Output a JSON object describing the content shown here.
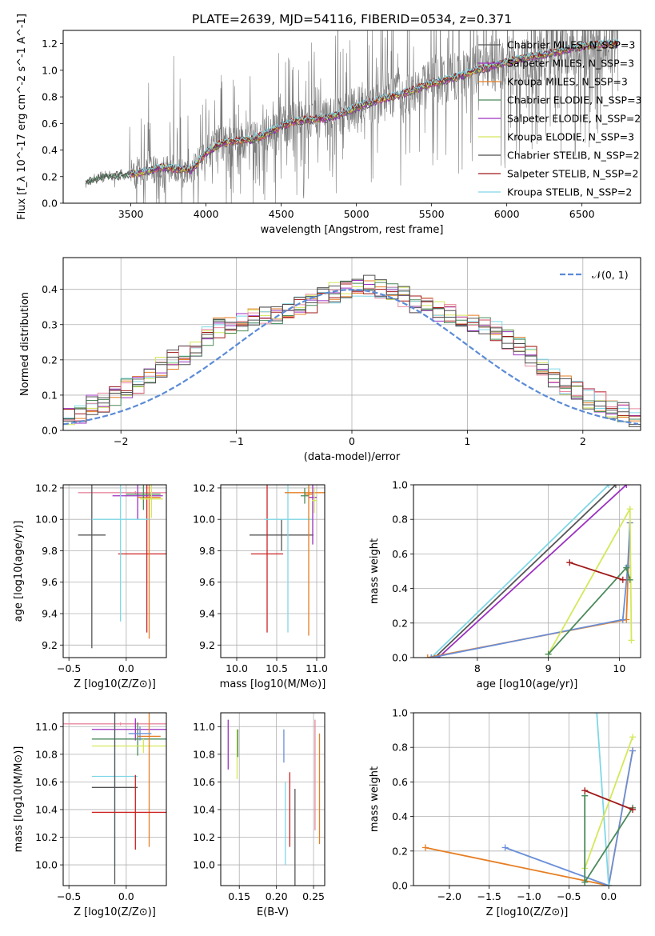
{
  "palette": [
    "#555555",
    "#9b30c0",
    "#e67e22",
    "#4a8a5a",
    "#d4e85a",
    "#4e4e4e",
    "#a01818",
    "#7fd7e6",
    "#e88aa0",
    "#6a8fd8"
  ],
  "chart_data": [
    {
      "type": "line",
      "title": "PLATE=2639, MJD=54116, FIBERID=0534, z=0.371",
      "xlabel": "wavelength [Angstrom, rest frame]",
      "ylabel": "Flux [f_λ 10^-17 erg cm^-2 s^-1 A^-1]",
      "xlim": [
        3050,
        6890
      ],
      "ylim": [
        0,
        1.3
      ],
      "xticks": [
        "3500",
        "4000",
        "4500",
        "5000",
        "5500",
        "6000",
        "6500"
      ],
      "yticks": [
        "0.0",
        "0.2",
        "0.4",
        "0.6",
        "0.8",
        "1.0",
        "1.2"
      ],
      "grid": false,
      "legend_position": "top-right",
      "data_range": [
        3200,
        6740
      ],
      "series": [
        {
          "name": "Chabrier MILES, N_SSP=3",
          "color": "#555555"
        },
        {
          "name": "Salpeter MILES, N_SSP=3",
          "color": "#9b30c0"
        },
        {
          "name": "Kroupa MILES, N_SSP=3",
          "color": "#e67e22"
        },
        {
          "name": "Chabrier ELODIE, N_SSP=3",
          "color": "#4a8a5a"
        },
        {
          "name": "Salpeter ELODIE, N_SSP=2",
          "color": "#9b30c0"
        },
        {
          "name": "Kroupa ELODIE, N_SSP=3",
          "color": "#d4e85a"
        },
        {
          "name": "Chabrier STELIB, N_SSP=2",
          "color": "#4e4e4e"
        },
        {
          "name": "Salpeter STELIB, N_SSP=2",
          "color": "#a01818"
        },
        {
          "name": "Kroupa STELIB, N_SSP=2",
          "color": "#7fd7e6"
        }
      ],
      "continuum_points": [
        [
          3200,
          0.16
        ],
        [
          3300,
          0.2
        ],
        [
          3400,
          0.21
        ],
        [
          3500,
          0.22
        ],
        [
          3600,
          0.24
        ],
        [
          3700,
          0.27
        ],
        [
          3800,
          0.26
        ],
        [
          3900,
          0.25
        ],
        [
          4000,
          0.38
        ],
        [
          4100,
          0.45
        ],
        [
          4200,
          0.47
        ],
        [
          4300,
          0.48
        ],
        [
          4400,
          0.52
        ],
        [
          4500,
          0.58
        ],
        [
          4600,
          0.62
        ],
        [
          4700,
          0.63
        ],
        [
          4800,
          0.64
        ],
        [
          4900,
          0.67
        ],
        [
          5000,
          0.72
        ],
        [
          5100,
          0.76
        ],
        [
          5200,
          0.79
        ],
        [
          5300,
          0.82
        ],
        [
          5400,
          0.86
        ],
        [
          5500,
          0.9
        ],
        [
          5600,
          0.93
        ],
        [
          5700,
          0.96
        ],
        [
          5800,
          1.0
        ],
        [
          5900,
          1.03
        ],
        [
          6000,
          1.06
        ],
        [
          6100,
          1.09
        ],
        [
          6200,
          1.11
        ],
        [
          6300,
          1.13
        ],
        [
          6400,
          1.16
        ],
        [
          6500,
          1.18
        ],
        [
          6600,
          1.19
        ],
        [
          6740,
          1.2
        ]
      ]
    },
    {
      "type": "step",
      "xlabel": "(data-model)/error",
      "ylabel": "Normed distribution",
      "xlim": [
        -2.5,
        2.5
      ],
      "ylim": [
        0,
        0.49
      ],
      "xticks": [
        "−2",
        "−1",
        "0",
        "1",
        "2"
      ],
      "yticks": [
        "0.0",
        "0.1",
        "0.2",
        "0.3",
        "0.4"
      ],
      "grid": true,
      "legend_position": "top-right",
      "legend": "𝒩(0, 1)",
      "gaussian": {
        "mean": 0,
        "sigma": 1,
        "color": "#5b8bd6"
      },
      "bin_width": 0.1,
      "base_histogram": [
        0.02,
        0.03,
        0.04,
        0.05,
        0.04,
        0.04,
        0.05,
        0.07,
        0.08,
        0.1,
        0.12,
        0.13,
        0.15,
        0.18,
        0.2,
        0.21,
        0.23,
        0.27,
        0.29,
        0.3,
        0.31,
        0.32,
        0.33,
        0.33,
        0.34,
        0.35,
        0.36,
        0.38,
        0.39,
        0.4,
        0.4,
        0.41,
        0.4,
        0.39,
        0.38,
        0.36,
        0.35,
        0.34,
        0.33,
        0.32,
        0.31,
        0.3,
        0.28,
        0.26,
        0.24,
        0.21,
        0.18,
        0.15,
        0.13,
        0.11,
        0.09,
        0.08,
        0.06,
        0.05,
        0.04,
        0.04,
        0.03,
        0.03,
        0.03,
        0.02
      ]
    },
    {
      "type": "errorbar",
      "xlabel": "Z [log10(Z/Z⊙)]",
      "ylabel": "age [log10(age/yr)]",
      "xlim": [
        -0.55,
        0.35
      ],
      "ylim": [
        9.12,
        10.22
      ],
      "xticks": [
        "−0.5",
        "0.0"
      ],
      "yticks": [
        "9.2",
        "9.4",
        "9.6",
        "9.8",
        "10.0",
        "10.2"
      ],
      "grid": true,
      "points": [
        {
          "x": 0.08,
          "y": 10.17,
          "xerr": 0.5,
          "yerr": 0.01,
          "color": "#e88aa0"
        },
        {
          "x": -0.3,
          "y": 9.9,
          "xerr": 0.12,
          "yerr": 0.72,
          "color": "#555555"
        },
        {
          "x": 0.18,
          "y": 9.78,
          "xerr": 0.25,
          "yerr": 0.5,
          "color": "#cc2222"
        },
        {
          "x": 0.1,
          "y": 10.15,
          "xerr": 0.22,
          "yerr": 0.15,
          "color": "#9b30c0"
        },
        {
          "x": 0.2,
          "y": 10.14,
          "xerr": 0.1,
          "yerr": 0.9,
          "color": "#e67e22"
        },
        {
          "x": -0.05,
          "y": 10.0,
          "xerr": 0.25,
          "yerr": 0.65,
          "color": "#7fd7e6"
        },
        {
          "x": 0.15,
          "y": 10.16,
          "xerr": 0.15,
          "yerr": 0.1,
          "color": "#4a8a5a"
        },
        {
          "x": 0.22,
          "y": 10.13,
          "xerr": 0.1,
          "yerr": 0.12,
          "color": "#d4e85a"
        }
      ]
    },
    {
      "type": "errorbar",
      "xlabel": "mass [log10(M/M⊙)]",
      "ylabel": "",
      "xlim": [
        9.8,
        11.1
      ],
      "ylim": [
        9.12,
        10.22
      ],
      "xticks": [
        "10.0",
        "10.5",
        "11.0"
      ],
      "yticks": [
        "9.2",
        "9.4",
        "9.6",
        "9.8",
        "10.0",
        "10.2"
      ],
      "grid": true,
      "points": [
        {
          "x": 10.56,
          "y": 9.9,
          "xerr": 0.4,
          "yerr": 0.1,
          "color": "#555555"
        },
        {
          "x": 10.38,
          "y": 9.78,
          "xerr": 0.2,
          "yerr": 0.5,
          "color": "#cc2222"
        },
        {
          "x": 10.64,
          "y": 10.0,
          "xerr": 0.3,
          "yerr": 0.72,
          "color": "#7fd7e6"
        },
        {
          "x": 10.9,
          "y": 10.17,
          "xerr": 0.3,
          "yerr": 0.02,
          "color": "#e67e22"
        },
        {
          "x": 10.95,
          "y": 10.14,
          "xerr": 0.05,
          "yerr": 0.3,
          "color": "#9b30c0"
        },
        {
          "x": 10.9,
          "y": 10.16,
          "xerr": 0.05,
          "yerr": 0.9,
          "color": "#e67e22"
        },
        {
          "x": 10.85,
          "y": 10.15,
          "xerr": 0.05,
          "yerr": 0.05,
          "color": "#4a8a5a"
        },
        {
          "x": 10.97,
          "y": 10.12,
          "xerr": 0.03,
          "yerr": 0.08,
          "color": "#d4e85a"
        }
      ]
    },
    {
      "type": "line",
      "xlabel": "age [log10(age/yr)]",
      "ylabel": "mass weight",
      "xlim": [
        7.1,
        10.3
      ],
      "ylim": [
        0,
        1
      ],
      "xticks": [
        "8",
        "9",
        "10"
      ],
      "yticks": [
        "0.0",
        "0.2",
        "0.4",
        "0.6",
        "0.8",
        "1.0"
      ],
      "grid": true,
      "series": [
        {
          "color": "#555555",
          "points": [
            [
              7.4,
              0.0
            ],
            [
              9.95,
              1.0
            ]
          ]
        },
        {
          "color": "#9b30c0",
          "points": [
            [
              7.45,
              0.0
            ],
            [
              10.1,
              1.0
            ]
          ]
        },
        {
          "color": "#7fd7e6",
          "points": [
            [
              7.35,
              0.0
            ],
            [
              9.85,
              1.0
            ]
          ]
        },
        {
          "color": "#e67e22",
          "points": [
            [
              7.3,
              0.0
            ],
            [
              10.1,
              0.22
            ],
            [
              10.15,
              0.78
            ]
          ]
        },
        {
          "color": "#6a8fd8",
          "points": [
            [
              7.35,
              0.0
            ],
            [
              10.05,
              0.22
            ],
            [
              10.12,
              0.53
            ],
            [
              10.15,
              0.78
            ]
          ]
        },
        {
          "color": "#d4e85a",
          "points": [
            [
              9.0,
              0.02
            ],
            [
              10.15,
              0.86
            ],
            [
              10.17,
              0.1
            ]
          ]
        },
        {
          "color": "#4a8a5a",
          "points": [
            [
              9.0,
              0.02
            ],
            [
              10.1,
              0.52
            ],
            [
              10.15,
              0.45
            ]
          ]
        },
        {
          "color": "#a01818",
          "points": [
            [
              9.3,
              0.55
            ],
            [
              10.05,
              0.45
            ]
          ]
        }
      ]
    },
    {
      "type": "errorbar",
      "xlabel": "Z [log10(Z/Z⊙)]",
      "ylabel": "mass [log10(M/M⊙)]",
      "xlim": [
        -0.55,
        0.35
      ],
      "ylim": [
        9.85,
        11.1
      ],
      "xticks": [
        "−0.5",
        "0.0"
      ],
      "yticks": [
        "10.0",
        "10.2",
        "10.4",
        "10.6",
        "10.8",
        "11.0"
      ],
      "grid": true,
      "points": [
        {
          "x": -0.05,
          "y": 11.02,
          "xerr": 0.5,
          "yerr": 0.01,
          "color": "#e88aa0"
        },
        {
          "x": 0.08,
          "y": 10.98,
          "xerr": 0.38,
          "yerr": 0.08,
          "color": "#9b30c0"
        },
        {
          "x": 0.1,
          "y": 10.91,
          "xerr": 0.4,
          "yerr": 0.12,
          "color": "#4a8a5a"
        },
        {
          "x": 0.15,
          "y": 10.86,
          "xerr": 0.45,
          "yerr": 0.05,
          "color": "#d4e85a"
        },
        {
          "x": 0.2,
          "y": 10.93,
          "xerr": 0.1,
          "yerr": 0.8,
          "color": "#e67e22"
        },
        {
          "x": -0.1,
          "y": 10.64,
          "xerr": 0.2,
          "yerr": 0.65,
          "color": "#7fd7e6"
        },
        {
          "x": -0.1,
          "y": 10.56,
          "xerr": 0.2,
          "yerr": 0.7,
          "color": "#555555"
        },
        {
          "x": 0.08,
          "y": 10.38,
          "xerr": 0.38,
          "yerr": 0.27,
          "color": "#cc2222"
        },
        {
          "x": 0.12,
          "y": 10.95,
          "xerr": 0.1,
          "yerr": 0.05,
          "color": "#6a8fd8"
        }
      ]
    },
    {
      "type": "errorbar",
      "xlabel": "E(B-V)",
      "ylabel": "",
      "xlim": [
        0.125,
        0.265
      ],
      "ylim": [
        9.85,
        11.1
      ],
      "xticks": [
        "0.15",
        "0.20",
        "0.25"
      ],
      "yticks": [
        "10.0",
        "10.2",
        "10.4",
        "10.6",
        "10.8",
        "11.0"
      ],
      "grid": true,
      "points": [
        {
          "x": 0.135,
          "y": 10.87,
          "xerr": 0.0,
          "yerr": 0.18,
          "color": "#9b30c0"
        },
        {
          "x": 0.147,
          "y": 10.8,
          "xerr": 0.0,
          "yerr": 0.18,
          "color": "#d4e85a"
        },
        {
          "x": 0.148,
          "y": 10.88,
          "xerr": 0.0,
          "yerr": 0.1,
          "color": "#4a8a5a"
        },
        {
          "x": 0.21,
          "y": 10.86,
          "xerr": 0.0,
          "yerr": 0.12,
          "color": "#6a8fd8"
        },
        {
          "x": 0.212,
          "y": 10.3,
          "xerr": 0.0,
          "yerr": 0.3,
          "color": "#7fd7e6"
        },
        {
          "x": 0.218,
          "y": 10.4,
          "xerr": 0.0,
          "yerr": 0.27,
          "color": "#cc2222"
        },
        {
          "x": 0.225,
          "y": 10.2,
          "xerr": 0.0,
          "yerr": 0.35,
          "color": "#555555"
        },
        {
          "x": 0.252,
          "y": 10.65,
          "xerr": 0.0,
          "yerr": 0.4,
          "color": "#e88aa0"
        },
        {
          "x": 0.258,
          "y": 10.55,
          "xerr": 0.0,
          "yerr": 0.4,
          "color": "#e67e22"
        }
      ]
    },
    {
      "type": "line",
      "xlabel": "Z [log10(Z/Z⊙)]",
      "ylabel": "mass weight",
      "xlim": [
        -2.45,
        0.4
      ],
      "ylim": [
        0,
        1
      ],
      "xticks": [
        "−2.0",
        "−1.5",
        "−1.0",
        "−0.5",
        "0.0"
      ],
      "yticks": [
        "0.0",
        "0.2",
        "0.4",
        "0.6",
        "0.8",
        "1.0"
      ],
      "grid": true,
      "series": [
        {
          "color": "#e67e22",
          "points": [
            [
              -2.3,
              0.22
            ],
            [
              0.0,
              0.0
            ],
            [
              0.3,
              0.78
            ]
          ]
        },
        {
          "color": "#6a8fd8",
          "points": [
            [
              -1.3,
              0.22
            ],
            [
              0.0,
              0.0
            ],
            [
              0.3,
              0.78
            ]
          ]
        },
        {
          "color": "#7fd7e6",
          "points": [
            [
              -0.15,
              1.0
            ],
            [
              0.0,
              0.0
            ]
          ]
        },
        {
          "color": "#d4e85a",
          "points": [
            [
              -0.3,
              0.1
            ],
            [
              0.3,
              0.86
            ]
          ]
        },
        {
          "color": "#4a8a5a",
          "points": [
            [
              -0.3,
              0.52
            ],
            [
              -0.3,
              0.02
            ],
            [
              0.3,
              0.45
            ]
          ]
        },
        {
          "color": "#a01818",
          "points": [
            [
              -0.3,
              0.55
            ],
            [
              0.3,
              0.44
            ]
          ]
        }
      ]
    }
  ]
}
